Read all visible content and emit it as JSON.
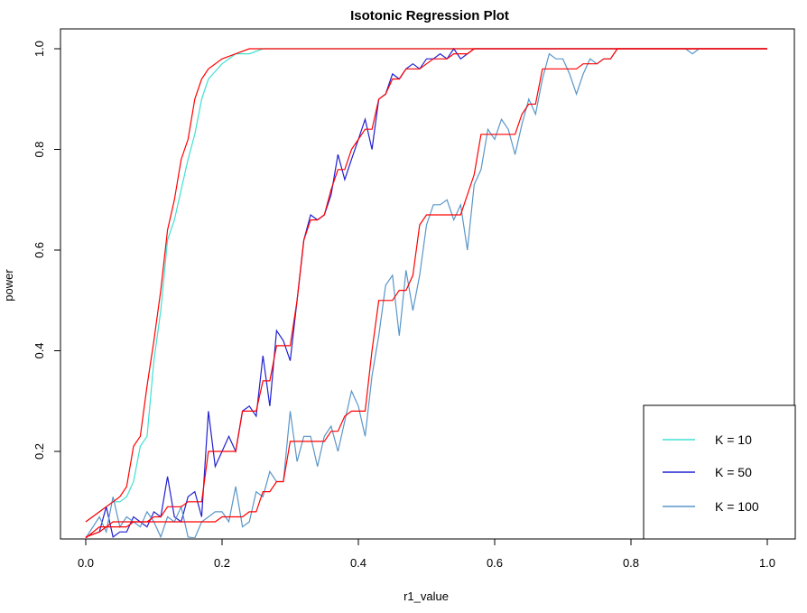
{
  "chart_data": {
    "type": "line",
    "title": "Isotonic Regression Plot",
    "xlabel": "r1_value",
    "ylabel": "power",
    "xlim": [
      0,
      1
    ],
    "ylim": [
      0.03,
      1.03
    ],
    "xticks": [
      0.0,
      0.2,
      0.4,
      0.6,
      0.8,
      1.0
    ],
    "xtick_labels": [
      "0.0",
      "0.2",
      "0.4",
      "0.6",
      "0.8",
      "1.0"
    ],
    "yticks": [
      0.2,
      0.4,
      0.6,
      0.8,
      1.0
    ],
    "ytick_labels": [
      "0.2",
      "0.4",
      "0.6",
      "0.8",
      "1.0"
    ],
    "grid": false,
    "legend_position": "bottom-right",
    "fit_color": "#ff0000",
    "series": [
      {
        "name": "K = 10",
        "color": "#40e0d0",
        "x": [
          0.0,
          0.01,
          0.02,
          0.03,
          0.04,
          0.05,
          0.06,
          0.07,
          0.08,
          0.09,
          0.1,
          0.11,
          0.12,
          0.13,
          0.14,
          0.15,
          0.16,
          0.17,
          0.18,
          0.2,
          0.22,
          0.24,
          0.26,
          0.3,
          0.4,
          0.6,
          0.8,
          1.0
        ],
        "values": [
          0.06,
          0.07,
          0.08,
          0.09,
          0.1,
          0.1,
          0.11,
          0.14,
          0.21,
          0.23,
          0.38,
          0.48,
          0.62,
          0.66,
          0.72,
          0.78,
          0.83,
          0.9,
          0.94,
          0.97,
          0.99,
          0.99,
          1.0,
          1.0,
          1.0,
          1.0,
          1.0,
          1.0
        ],
        "fit": [
          0.06,
          0.07,
          0.08,
          0.09,
          0.1,
          0.11,
          0.13,
          0.21,
          0.23,
          0.33,
          0.42,
          0.52,
          0.64,
          0.7,
          0.78,
          0.82,
          0.9,
          0.94,
          0.96,
          0.98,
          0.99,
          1.0,
          1.0,
          1.0,
          1.0,
          1.0,
          1.0,
          1.0
        ]
      },
      {
        "name": "K = 50",
        "color": "#2020d0",
        "x": [
          0.0,
          0.02,
          0.03,
          0.04,
          0.05,
          0.06,
          0.07,
          0.08,
          0.09,
          0.1,
          0.11,
          0.12,
          0.13,
          0.14,
          0.15,
          0.16,
          0.17,
          0.18,
          0.19,
          0.2,
          0.21,
          0.22,
          0.23,
          0.24,
          0.25,
          0.26,
          0.27,
          0.28,
          0.29,
          0.3,
          0.31,
          0.32,
          0.33,
          0.34,
          0.35,
          0.36,
          0.37,
          0.38,
          0.39,
          0.4,
          0.41,
          0.42,
          0.43,
          0.44,
          0.45,
          0.46,
          0.47,
          0.48,
          0.49,
          0.5,
          0.51,
          0.52,
          0.53,
          0.54,
          0.55,
          0.56,
          0.57,
          0.58,
          0.6,
          0.8,
          1.0
        ],
        "values": [
          0.03,
          0.04,
          0.09,
          0.03,
          0.04,
          0.04,
          0.07,
          0.06,
          0.05,
          0.08,
          0.07,
          0.15,
          0.07,
          0.06,
          0.11,
          0.12,
          0.07,
          0.28,
          0.17,
          0.2,
          0.23,
          0.2,
          0.28,
          0.29,
          0.27,
          0.39,
          0.29,
          0.44,
          0.42,
          0.38,
          0.5,
          0.62,
          0.67,
          0.66,
          0.67,
          0.71,
          0.79,
          0.74,
          0.78,
          0.82,
          0.86,
          0.8,
          0.9,
          0.91,
          0.95,
          0.94,
          0.96,
          0.97,
          0.96,
          0.98,
          0.98,
          0.99,
          0.98,
          1.0,
          0.98,
          0.99,
          1.0,
          1.0,
          1.0,
          1.0,
          1.0
        ],
        "fit": [
          0.03,
          0.04,
          0.05,
          0.05,
          0.05,
          0.05,
          0.06,
          0.06,
          0.06,
          0.07,
          0.07,
          0.09,
          0.09,
          0.09,
          0.1,
          0.1,
          0.1,
          0.2,
          0.2,
          0.2,
          0.2,
          0.2,
          0.28,
          0.28,
          0.28,
          0.34,
          0.34,
          0.41,
          0.41,
          0.41,
          0.5,
          0.62,
          0.66,
          0.66,
          0.67,
          0.72,
          0.76,
          0.76,
          0.8,
          0.82,
          0.84,
          0.84,
          0.9,
          0.91,
          0.94,
          0.94,
          0.96,
          0.96,
          0.96,
          0.97,
          0.98,
          0.98,
          0.98,
          0.99,
          0.99,
          0.99,
          1.0,
          1.0,
          1.0,
          1.0,
          1.0
        ]
      },
      {
        "name": "K = 100",
        "color": "#5a96c8",
        "x": [
          0.0,
          0.02,
          0.03,
          0.04,
          0.05,
          0.06,
          0.07,
          0.08,
          0.09,
          0.1,
          0.11,
          0.12,
          0.13,
          0.14,
          0.15,
          0.16,
          0.17,
          0.18,
          0.19,
          0.2,
          0.21,
          0.22,
          0.23,
          0.24,
          0.25,
          0.26,
          0.27,
          0.28,
          0.29,
          0.3,
          0.31,
          0.32,
          0.33,
          0.34,
          0.35,
          0.36,
          0.37,
          0.38,
          0.39,
          0.4,
          0.41,
          0.42,
          0.43,
          0.44,
          0.45,
          0.46,
          0.47,
          0.48,
          0.49,
          0.5,
          0.51,
          0.52,
          0.53,
          0.54,
          0.55,
          0.56,
          0.57,
          0.58,
          0.59,
          0.6,
          0.61,
          0.62,
          0.63,
          0.64,
          0.65,
          0.66,
          0.67,
          0.68,
          0.69,
          0.7,
          0.71,
          0.72,
          0.73,
          0.74,
          0.75,
          0.76,
          0.77,
          0.78,
          0.8,
          0.86,
          0.88,
          0.89,
          0.9,
          1.0
        ],
        "values": [
          0.02,
          0.07,
          0.04,
          0.11,
          0.05,
          0.07,
          0.06,
          0.05,
          0.08,
          0.06,
          0.03,
          0.07,
          0.06,
          0.09,
          0.03,
          0.02,
          0.06,
          0.07,
          0.08,
          0.08,
          0.06,
          0.13,
          0.05,
          0.06,
          0.12,
          0.11,
          0.16,
          0.14,
          0.14,
          0.28,
          0.18,
          0.23,
          0.23,
          0.17,
          0.23,
          0.25,
          0.2,
          0.26,
          0.32,
          0.29,
          0.23,
          0.35,
          0.43,
          0.53,
          0.55,
          0.43,
          0.56,
          0.48,
          0.55,
          0.65,
          0.69,
          0.69,
          0.7,
          0.66,
          0.69,
          0.6,
          0.73,
          0.76,
          0.84,
          0.82,
          0.86,
          0.84,
          0.79,
          0.85,
          0.9,
          0.87,
          0.94,
          0.99,
          0.98,
          0.98,
          0.95,
          0.91,
          0.95,
          0.98,
          0.97,
          0.98,
          0.98,
          1.0,
          1.0,
          1.0,
          1.0,
          0.99,
          1.0,
          1.0
        ],
        "fit": [
          0.02,
          0.05,
          0.05,
          0.06,
          0.06,
          0.06,
          0.06,
          0.06,
          0.06,
          0.06,
          0.06,
          0.06,
          0.06,
          0.06,
          0.06,
          0.06,
          0.06,
          0.06,
          0.06,
          0.07,
          0.07,
          0.07,
          0.07,
          0.08,
          0.08,
          0.12,
          0.12,
          0.14,
          0.14,
          0.22,
          0.22,
          0.22,
          0.22,
          0.22,
          0.22,
          0.24,
          0.24,
          0.27,
          0.28,
          0.28,
          0.28,
          0.4,
          0.5,
          0.5,
          0.5,
          0.52,
          0.52,
          0.55,
          0.65,
          0.67,
          0.67,
          0.67,
          0.67,
          0.67,
          0.67,
          0.71,
          0.75,
          0.83,
          0.83,
          0.83,
          0.83,
          0.83,
          0.83,
          0.87,
          0.89,
          0.89,
          0.96,
          0.96,
          0.96,
          0.96,
          0.96,
          0.96,
          0.97,
          0.97,
          0.97,
          0.98,
          0.98,
          1.0,
          1.0,
          1.0,
          1.0,
          1.0,
          1.0,
          1.0
        ]
      }
    ]
  }
}
